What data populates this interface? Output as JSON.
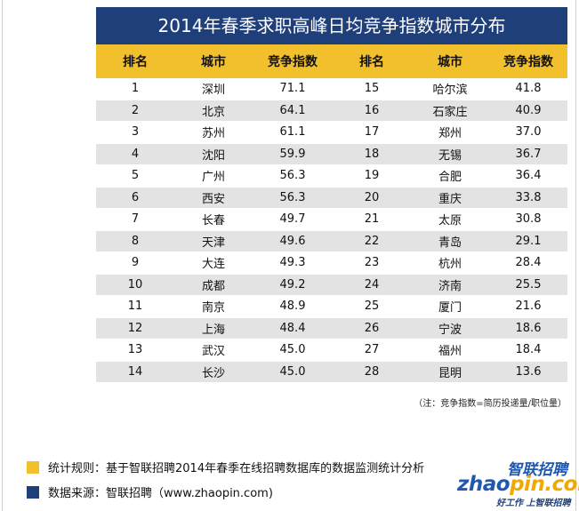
{
  "title": "2014年春季求职高峰日均竞争指数城市分布",
  "headers": [
    "排名",
    "城市",
    "竞争指数",
    "排名",
    "城市",
    "竞争指数"
  ],
  "rows": [
    [
      "1",
      "深圳",
      "71.1",
      "15",
      "哈尔滨",
      "41.8"
    ],
    [
      "2",
      "北京",
      "64.1",
      "16",
      "石家庄",
      "40.9"
    ],
    [
      "3",
      "苏州",
      "61.1",
      "17",
      "郑州",
      "37.0"
    ],
    [
      "4",
      "沈阳",
      "59.9",
      "18",
      "无锡",
      "36.7"
    ],
    [
      "5",
      "广州",
      "56.3",
      "19",
      "合肥",
      "36.4"
    ],
    [
      "6",
      "西安",
      "56.3",
      "20",
      "重庆",
      "33.8"
    ],
    [
      "7",
      "长春",
      "49.7",
      "21",
      "太原",
      "30.8"
    ],
    [
      "8",
      "天津",
      "49.6",
      "22",
      "青岛",
      "29.1"
    ],
    [
      "9",
      "大连",
      "49.3",
      "23",
      "杭州",
      "28.4"
    ],
    [
      "10",
      "成都",
      "49.2",
      "24",
      "济南",
      "25.5"
    ],
    [
      "11",
      "南京",
      "48.9",
      "25",
      "厦门",
      "21.6"
    ],
    [
      "12",
      "上海",
      "48.4",
      "26",
      "宁波",
      "18.6"
    ],
    [
      "13",
      "武汉",
      "45.0",
      "27",
      "福州",
      "18.4"
    ],
    [
      "14",
      "长沙",
      "45.0",
      "28",
      "昆明",
      "13.6"
    ]
  ],
  "note": "（注：竞争指数=简历投递量/职位量）",
  "legend": {
    "rule": "统计规则：基于智联招聘2014年春季在线招聘数据库的数据监测统计分析",
    "source": "数据来源：智联招聘（www.zhaopin.com)"
  },
  "logo": {
    "cn": "智联招聘",
    "brand_part1": "zhao",
    "brand_part2": "pin.com",
    "slogan": "好工作 上智联招聘"
  },
  "colors": {
    "title_bg": "#1f3f7a",
    "header_bg": "#f2c02c",
    "row_alt": "#e3e3e3",
    "legend_yellow": "#f2c02c",
    "legend_blue": "#1f3f7a"
  }
}
